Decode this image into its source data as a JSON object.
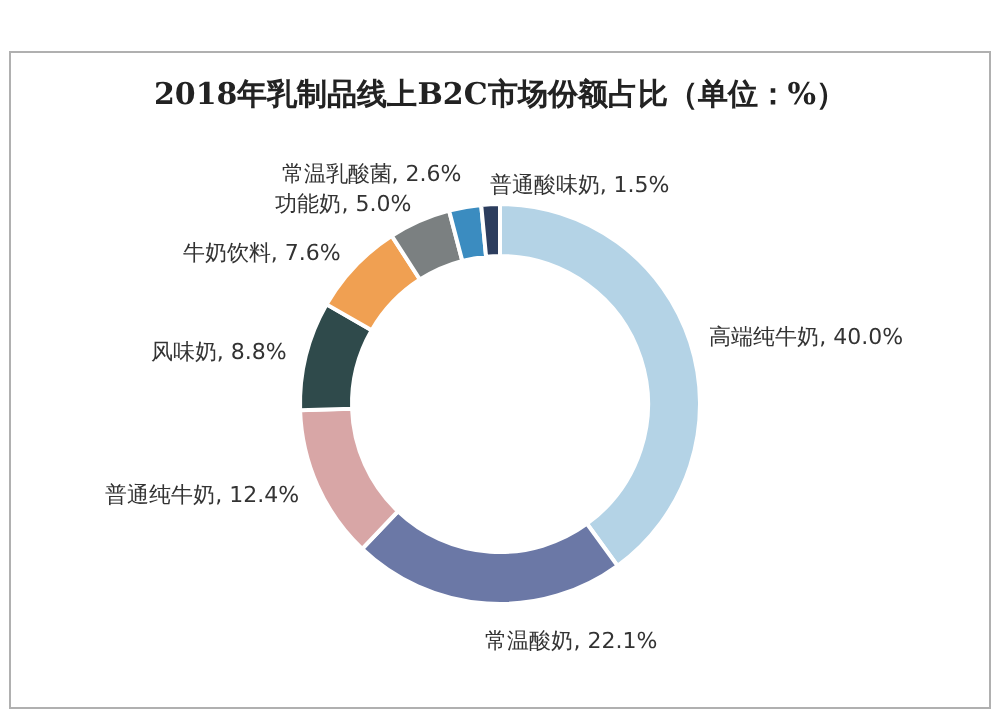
{
  "chart_data": {
    "type": "donut",
    "title": "2018年乳制品线上B2C市场份额占比（单位：%）",
    "categories": [
      "高端纯牛奶",
      "常温酸奶",
      "普通纯牛奶",
      "风味奶",
      "牛奶饮料",
      "功能奶",
      "常温乳酸菌",
      "普通酸味奶"
    ],
    "values": [
      40.0,
      22.1,
      12.4,
      8.8,
      7.6,
      5.0,
      2.6,
      1.5
    ],
    "value_labels": [
      "40.0%",
      "22.1%",
      "12.4%",
      "8.8%",
      "7.6%",
      "5.0%",
      "2.6%",
      "1.5%"
    ],
    "colors": [
      "#b4d3e6",
      "#6b78a6",
      "#d8a6a6",
      "#2f4a4b",
      "#f0a052",
      "#7b8081",
      "#3b8cc0",
      "#2c3d5e"
    ],
    "legend": false
  }
}
